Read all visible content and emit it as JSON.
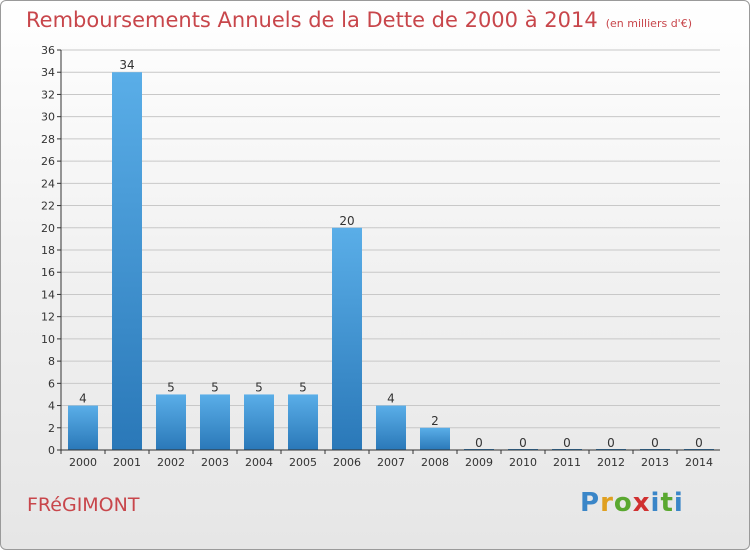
{
  "header": {
    "title": "Remboursements Annuels de la Dette de 2000 à 2014",
    "unit": "(en milliers d'€)"
  },
  "footer": {
    "commune": "FRéGIMONT",
    "logo_letters": [
      "P",
      "r",
      "o",
      "x",
      "i",
      "t",
      "i"
    ],
    "logo_colors": [
      "#3a86c8",
      "#e0a020",
      "#5aa830",
      "#d03030",
      "#3a86c8",
      "#5aa830",
      "#3a86c8"
    ]
  },
  "colors": {
    "bar_light": "#5aaee8",
    "bar_dark": "#2a78b8",
    "grid": "#c8c8c8",
    "axis": "#333333",
    "text": "#333333",
    "title": "#c8464b"
  },
  "chart_data": {
    "type": "bar",
    "title": "Remboursements Annuels de la Dette de 2000 à 2014",
    "categories": [
      "2000",
      "2001",
      "2002",
      "2003",
      "2004",
      "2005",
      "2006",
      "2007",
      "2008",
      "2009",
      "2010",
      "2011",
      "2012",
      "2013",
      "2014"
    ],
    "values": [
      4,
      34,
      5,
      5,
      5,
      5,
      20,
      4,
      2,
      0,
      0,
      0,
      0,
      0,
      0
    ],
    "data_labels": [
      "4",
      "34",
      "5",
      "5",
      "5",
      "5",
      "20",
      "4",
      "2",
      "0",
      "0",
      "0",
      "0",
      "0",
      "0"
    ],
    "ylim": [
      0,
      36
    ],
    "yticks": [
      0,
      2,
      4,
      6,
      8,
      10,
      12,
      14,
      16,
      18,
      20,
      22,
      24,
      26,
      28,
      30,
      32,
      34,
      36
    ],
    "grid": true
  }
}
